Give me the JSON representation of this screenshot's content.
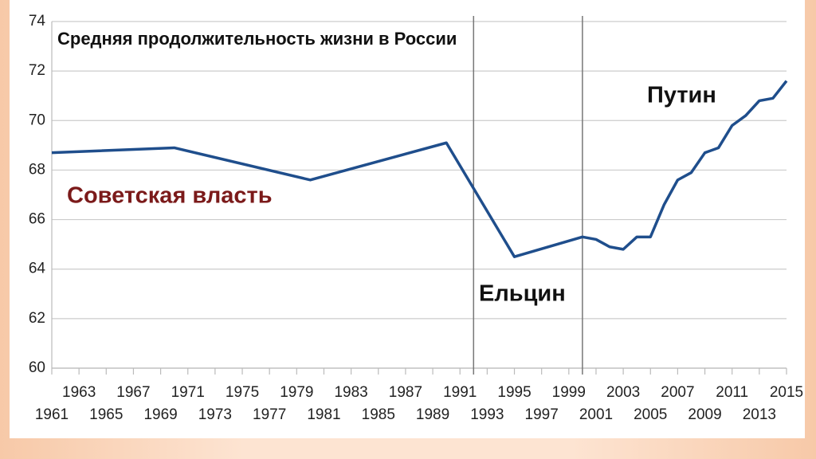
{
  "chart_data": {
    "type": "line",
    "title": "Средняя продолжительность жизни в России",
    "annotations": [
      "Советская власть",
      "Ельцин",
      "Путин"
    ],
    "x": [
      1961,
      1970,
      1980,
      1990,
      1995,
      2000,
      2001,
      2002,
      2003,
      2004,
      2005,
      2006,
      2007,
      2008,
      2009,
      2010,
      2011,
      2012,
      2013,
      2014,
      2015
    ],
    "series": [
      {
        "name": "Средняя продолжительность жизни",
        "color": "#1f4e8c",
        "values": [
          68.7,
          68.9,
          67.6,
          69.1,
          64.5,
          65.3,
          65.2,
          64.9,
          64.8,
          65.3,
          65.3,
          66.6,
          67.6,
          67.9,
          68.7,
          68.9,
          69.8,
          70.2,
          70.8,
          70.9,
          71.6
        ]
      }
    ],
    "period_lines": [
      1992,
      2000
    ],
    "xlim": [
      1961,
      2015
    ],
    "xticks": [
      1961,
      1963,
      1965,
      1967,
      1969,
      1971,
      1973,
      1975,
      1977,
      1979,
      1981,
      1983,
      1985,
      1987,
      1989,
      1991,
      1993,
      1995,
      1997,
      1999,
      2001,
      2003,
      2005,
      2007,
      2009,
      2011,
      2013,
      2015
    ],
    "ylim": [
      60,
      74
    ],
    "yticks": [
      60,
      62,
      64,
      66,
      68,
      70,
      72,
      74
    ],
    "grid": true
  }
}
